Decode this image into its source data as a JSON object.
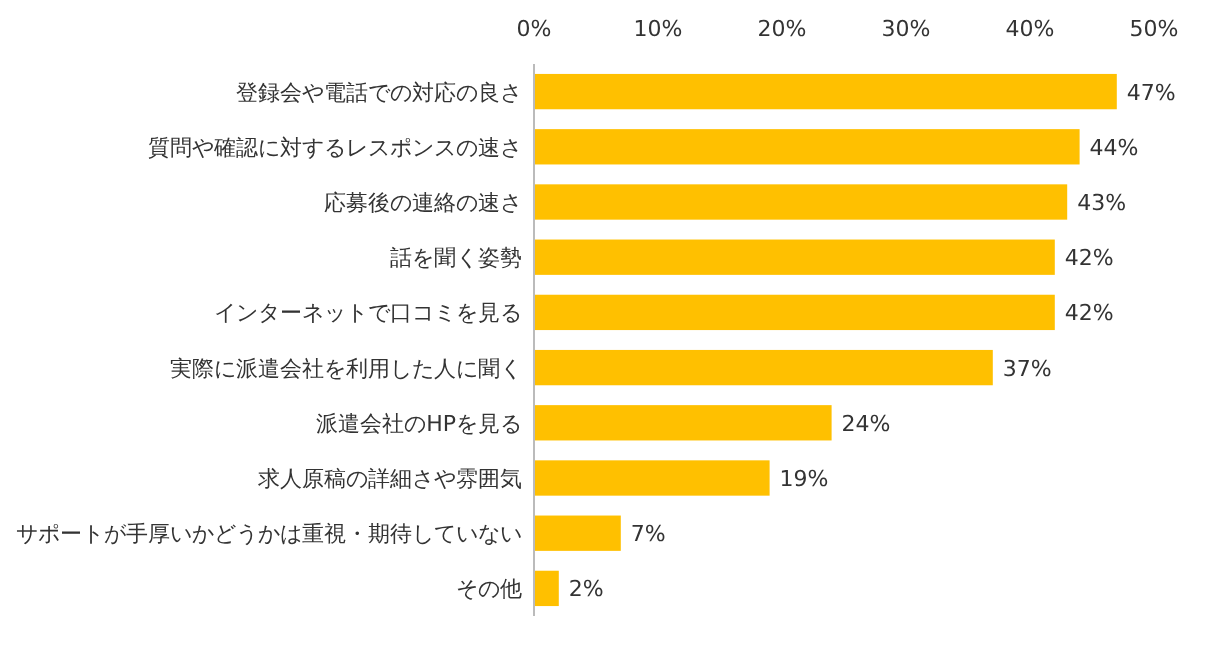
{
  "chart_data": {
    "type": "bar",
    "orientation": "horizontal",
    "categories": [
      "登録会や電話での対応の良さ",
      "質問や確認に対するレスポンスの速さ",
      "応募後の連絡の速さ",
      "話を聞く姿勢",
      "インターネットで口コミを見る",
      "実際に派遣会社を利用した人に聞く",
      "派遣会社のHPを見る",
      "求人原稿の詳細さや雰囲気",
      "サポートが手厚いかどうかは重視・期待していない",
      "その他"
    ],
    "values": [
      47,
      44,
      43,
      42,
      42,
      37,
      24,
      19,
      7,
      2
    ],
    "value_labels": [
      "47%",
      "44%",
      "43%",
      "42%",
      "42%",
      "37%",
      "24%",
      "19%",
      "7%",
      "2%"
    ],
    "color": "#ffc000",
    "xlim": [
      0,
      50
    ],
    "xticks": [
      {
        "value": 0,
        "label": "0%"
      },
      {
        "value": 10,
        "label": "10%"
      },
      {
        "value": 20,
        "label": "20%"
      },
      {
        "value": 30,
        "label": "30%"
      },
      {
        "value": 40,
        "label": "40%"
      },
      {
        "value": 50,
        "label": "50%"
      }
    ]
  }
}
